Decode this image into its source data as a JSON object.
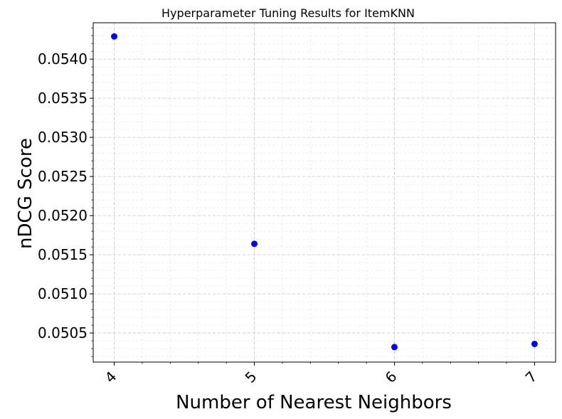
{
  "chart_data": {
    "type": "scatter",
    "title": "Hyperparameter Tuning Results for ItemKNN",
    "xlabel": "Number of Nearest Neighbors",
    "ylabel": "nDCG Score",
    "x": [
      4,
      5,
      6,
      7
    ],
    "y": [
      0.05429,
      0.05164,
      0.05032,
      0.05036
    ],
    "xlim": [
      3.85,
      7.15
    ],
    "ylim": [
      0.050128,
      0.054465
    ],
    "xticks": [
      4,
      5,
      6,
      7
    ],
    "xtick_labels": [
      "4",
      "5",
      "6",
      "7"
    ],
    "yticks": [
      0.0505,
      0.051,
      0.0515,
      0.052,
      0.0525,
      0.053,
      0.0535,
      0.054
    ],
    "ytick_labels": [
      "0.0505",
      "0.0510",
      "0.0515",
      "0.0520",
      "0.0525",
      "0.0530",
      "0.0535",
      "0.0540"
    ],
    "grid": true,
    "minor_grid": true,
    "x_minor_step": 0.2,
    "y_minor_step": 0.0001,
    "point_color": "#0000ff"
  }
}
